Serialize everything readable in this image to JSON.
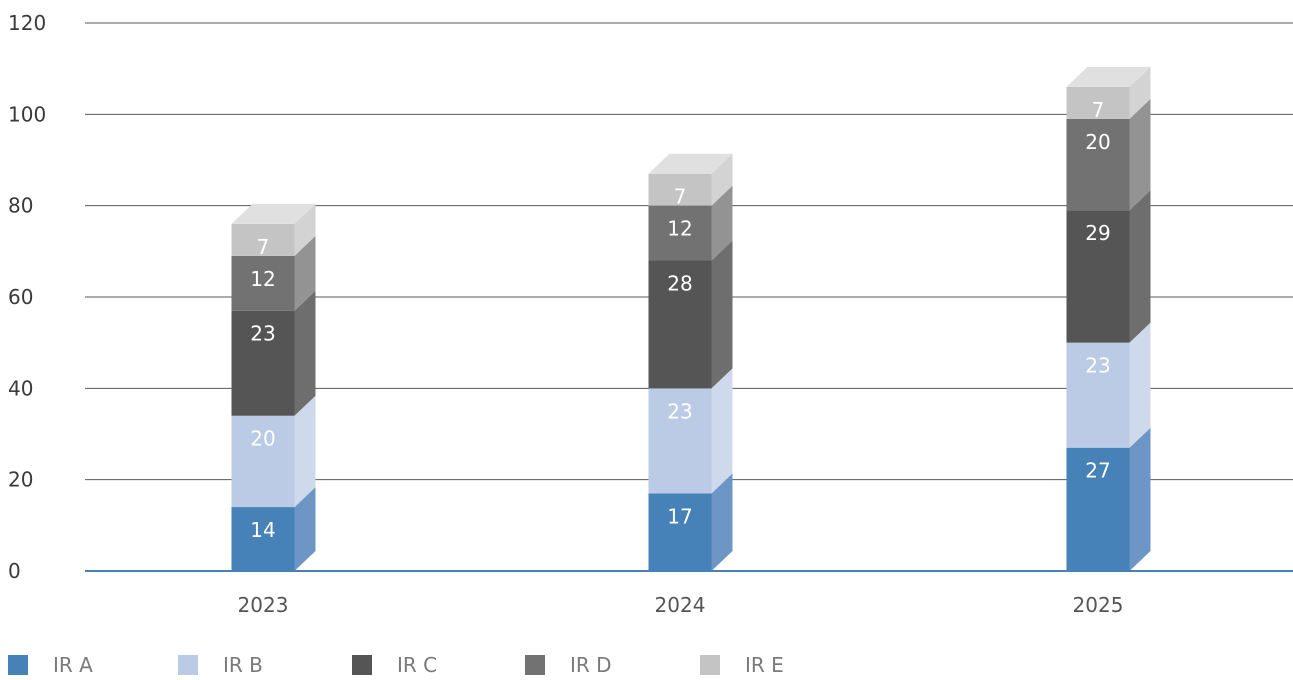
{
  "chart_data": {
    "type": "bar",
    "stacked": true,
    "style": "3d-column",
    "categories": [
      "2023",
      "2024",
      "2025"
    ],
    "series": [
      {
        "name": "IR A",
        "values": [
          14,
          17,
          27
        ],
        "color": "#4682b8",
        "side_color": "#6d96c6",
        "top_color": "#9bb7da",
        "label_color": "#ffffff"
      },
      {
        "name": "IR B",
        "values": [
          20,
          23,
          23
        ],
        "color": "#bccbe5",
        "side_color": "#cfd9ec",
        "top_color": "#dde5f2",
        "label_color": "#ffffff"
      },
      {
        "name": "IR C",
        "values": [
          23,
          28,
          29
        ],
        "color": "#555555",
        "side_color": "#6e6e6e",
        "top_color": "#8a8a8a",
        "label_color": "#ffffff"
      },
      {
        "name": "IR D",
        "values": [
          12,
          12,
          20
        ],
        "color": "#727272",
        "side_color": "#939393",
        "top_color": "#a8a8a8",
        "label_color": "#ffffff"
      },
      {
        "name": "IR E",
        "values": [
          7,
          7,
          7
        ],
        "color": "#c4c4c4",
        "side_color": "#d3d3d3",
        "top_color": "#e0e0e0",
        "label_color": "#ffffff"
      }
    ],
    "ylim": [
      0,
      120
    ],
    "yticks": [
      "0",
      "20",
      "40",
      "60",
      "80",
      "100",
      "120"
    ],
    "grid": true,
    "legend_position": "bottom-left",
    "colors": {
      "gridline": "#595959",
      "baseline": "#4682b8"
    }
  }
}
